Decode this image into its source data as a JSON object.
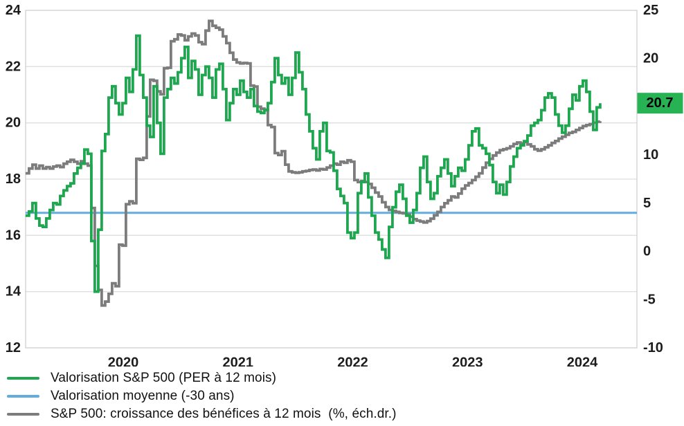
{
  "chart_data": {
    "type": "line",
    "title": "",
    "x_axis": {
      "tick_values": [
        2020,
        2021,
        2022,
        2023,
        2024
      ],
      "tick_labels": [
        "2020",
        "2021",
        "2022",
        "2023",
        "2024"
      ]
    },
    "left_axis": {
      "min": 12,
      "max": 24,
      "ticks": [
        24,
        22,
        20,
        18,
        16,
        14,
        12
      ],
      "gridlines": [
        22,
        20,
        18,
        16,
        14
      ]
    },
    "right_axis": {
      "min": -10,
      "max": 25,
      "ticks": [
        25,
        20,
        10,
        5,
        0,
        -5,
        -10
      ]
    },
    "annotation": {
      "label": "20.7",
      "value": 20.7,
      "bg": "#27b254",
      "text_color": "#000000"
    },
    "sample_start_year": 2019.149,
    "sample_step_years": 0.030166,
    "series": [
      {
        "id": "per",
        "name": "Valorisation S&P 500 (PER à 12 mois)",
        "color": "#1fa750",
        "axis": "left",
        "values": [
          16.7,
          16.85,
          17.15,
          16.6,
          16.35,
          16.3,
          16.6,
          16.9,
          17.15,
          17.1,
          17.4,
          17.6,
          17.75,
          17.85,
          18.2,
          18.4,
          18.55,
          19.05,
          18.9,
          15.8,
          14.0,
          16.2,
          19.0,
          19.6,
          20.9,
          21.3,
          20.7,
          20.3,
          20.7,
          21.6,
          21.1,
          21.9,
          23.1,
          21.7,
          20.9,
          19.9,
          19.5,
          21.3,
          20.0,
          18.9,
          20.9,
          21.2,
          21.6,
          21.4,
          21.8,
          22.3,
          22.7,
          21.6,
          22.2,
          21.9,
          21.0,
          21.7,
          22.0,
          21.6,
          20.9,
          21.9,
          22.1,
          21.2,
          20.1,
          20.7,
          21.2,
          21.0,
          21.5,
          21.1,
          20.9,
          21.2,
          20.6,
          20.4,
          20.35,
          20.45,
          20.7,
          21.45,
          22.3,
          21.7,
          21.4,
          21.6,
          21.0,
          21.6,
          22.5,
          21.8,
          21.2,
          20.3,
          19.7,
          19.1,
          18.7,
          19.7,
          20.0,
          19.0,
          18.95,
          18.3,
          17.65,
          17.4,
          17.15,
          16.1,
          15.9,
          16.1,
          17.5,
          17.9,
          18.2,
          17.35,
          16.7,
          16.1,
          15.85,
          15.5,
          15.2,
          16.3,
          17.0,
          17.55,
          17.8,
          17.3,
          16.7,
          16.45,
          16.9,
          17.5,
          18.4,
          18.8,
          17.9,
          17.3,
          17.5,
          18.1,
          18.4,
          18.7,
          18.2,
          17.75,
          18.1,
          18.4,
          18.3,
          18.7,
          19.2,
          19.7,
          19.8,
          19.2,
          19.1,
          18.9,
          18.5,
          17.9,
          17.5,
          17.8,
          17.45,
          17.9,
          18.45,
          18.8,
          19.1,
          19.2,
          19.35,
          19.55,
          19.9,
          20.0,
          20.1,
          20.45,
          20.9,
          21.05,
          20.9,
          20.3,
          19.9,
          19.65,
          19.9,
          20.5,
          21.0,
          20.8,
          21.3,
          21.5,
          21.1,
          20.4,
          19.75,
          20.55,
          20.7
        ]
      },
      {
        "id": "moyenne",
        "name": "Valorisation moyenne (-30 ans)",
        "color": "#62acdf",
        "axis": "left",
        "constant": 16.8
      },
      {
        "id": "croissance",
        "name": "S&P 500: croissance des bénéfices à 12 mois  (%, éch.dr.)",
        "color": "#7c7c7c",
        "axis": "right",
        "values": [
          8.1,
          8.6,
          9.0,
          8.6,
          8.9,
          8.6,
          8.75,
          8.6,
          8.8,
          8.9,
          8.75,
          9.1,
          9.3,
          9.5,
          9.3,
          9.1,
          9.35,
          9.1,
          8.9,
          4.5,
          -1.5,
          -4.0,
          -5.6,
          -5.2,
          -4.4,
          -3.3,
          -3.6,
          0.7,
          0.6,
          4.9,
          5.2,
          5.0,
          9.6,
          9.5,
          9.7,
          14.0,
          17.8,
          17.7,
          16.6,
          16.3,
          19.0,
          19.05,
          21.8,
          22.0,
          22.5,
          22.4,
          21.9,
          22.3,
          22.6,
          22.4,
          21.7,
          21.5,
          22.9,
          23.9,
          23.4,
          23.2,
          23.0,
          22.3,
          21.6,
          20.6,
          19.9,
          19.6,
          19.5,
          19.55,
          19.5,
          17.2,
          17.1,
          15.0,
          14.8,
          14.7,
          13.1,
          12.9,
          10.2,
          10.0,
          10.4,
          9.0,
          8.3,
          8.2,
          8.15,
          8.2,
          8.3,
          8.35,
          8.45,
          8.5,
          8.4,
          8.55,
          8.5,
          8.7,
          8.9,
          9.1,
          9.0,
          9.3,
          9.2,
          9.45,
          9.3,
          7.4,
          7.2,
          7.3,
          7.2,
          7.0,
          6.6,
          6.1,
          5.7,
          5.1,
          4.6,
          4.3,
          4.2,
          4.1,
          4.0,
          3.95,
          3.85,
          3.6,
          3.35,
          3.2,
          3.1,
          3.0,
          3.15,
          3.4,
          3.75,
          4.1,
          4.6,
          5.0,
          5.3,
          5.7,
          5.6,
          6.0,
          6.5,
          6.85,
          7.1,
          7.4,
          7.75,
          8.1,
          8.7,
          9.2,
          9.6,
          9.95,
          10.25,
          10.5,
          10.6,
          10.7,
          10.9,
          11.15,
          11.3,
          11.2,
          11.35,
          11.1,
          10.9,
          10.6,
          10.45,
          10.6,
          10.8,
          11.0,
          11.25,
          11.45,
          11.7,
          11.9,
          12.1,
          12.3,
          12.4,
          12.6,
          12.8,
          13.0,
          13.1,
          13.2,
          13.35,
          13.45,
          13.5
        ]
      }
    ],
    "legend_position": "bottom-left",
    "grid": true
  },
  "colors": {
    "grid": "#dedede",
    "border": "#cfcfcf",
    "tick_text": "#1c1c1c"
  }
}
